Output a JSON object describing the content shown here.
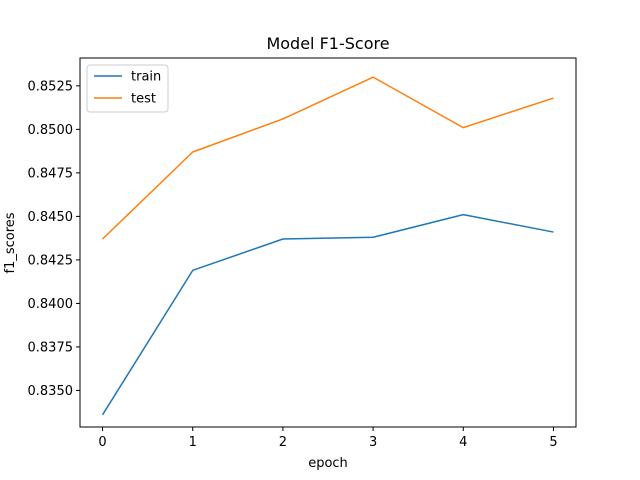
{
  "chart_data": {
    "type": "line",
    "title": "Model F1-Score",
    "xlabel": "epoch",
    "ylabel": "f1_scores",
    "x": [
      0,
      1,
      2,
      3,
      4,
      5
    ],
    "xlim": [
      -0.25,
      5.25
    ],
    "ylim": [
      0.8329,
      0.8541
    ],
    "xticks": [
      "0",
      "1",
      "2",
      "3",
      "4",
      "5"
    ],
    "yticks": [
      "0.8350",
      "0.8375",
      "0.8400",
      "0.8425",
      "0.8450",
      "0.8475",
      "0.8500",
      "0.8525"
    ],
    "grid": false,
    "legend_position": "top-left",
    "series": [
      {
        "name": "train",
        "color": "#1f77b4",
        "values": [
          0.8336,
          0.8419,
          0.8437,
          0.8438,
          0.8451,
          0.8441
        ]
      },
      {
        "name": "test",
        "color": "#ff7f0e",
        "values": [
          0.8437,
          0.8487,
          0.8506,
          0.853,
          0.8501,
          0.8518
        ]
      }
    ]
  }
}
